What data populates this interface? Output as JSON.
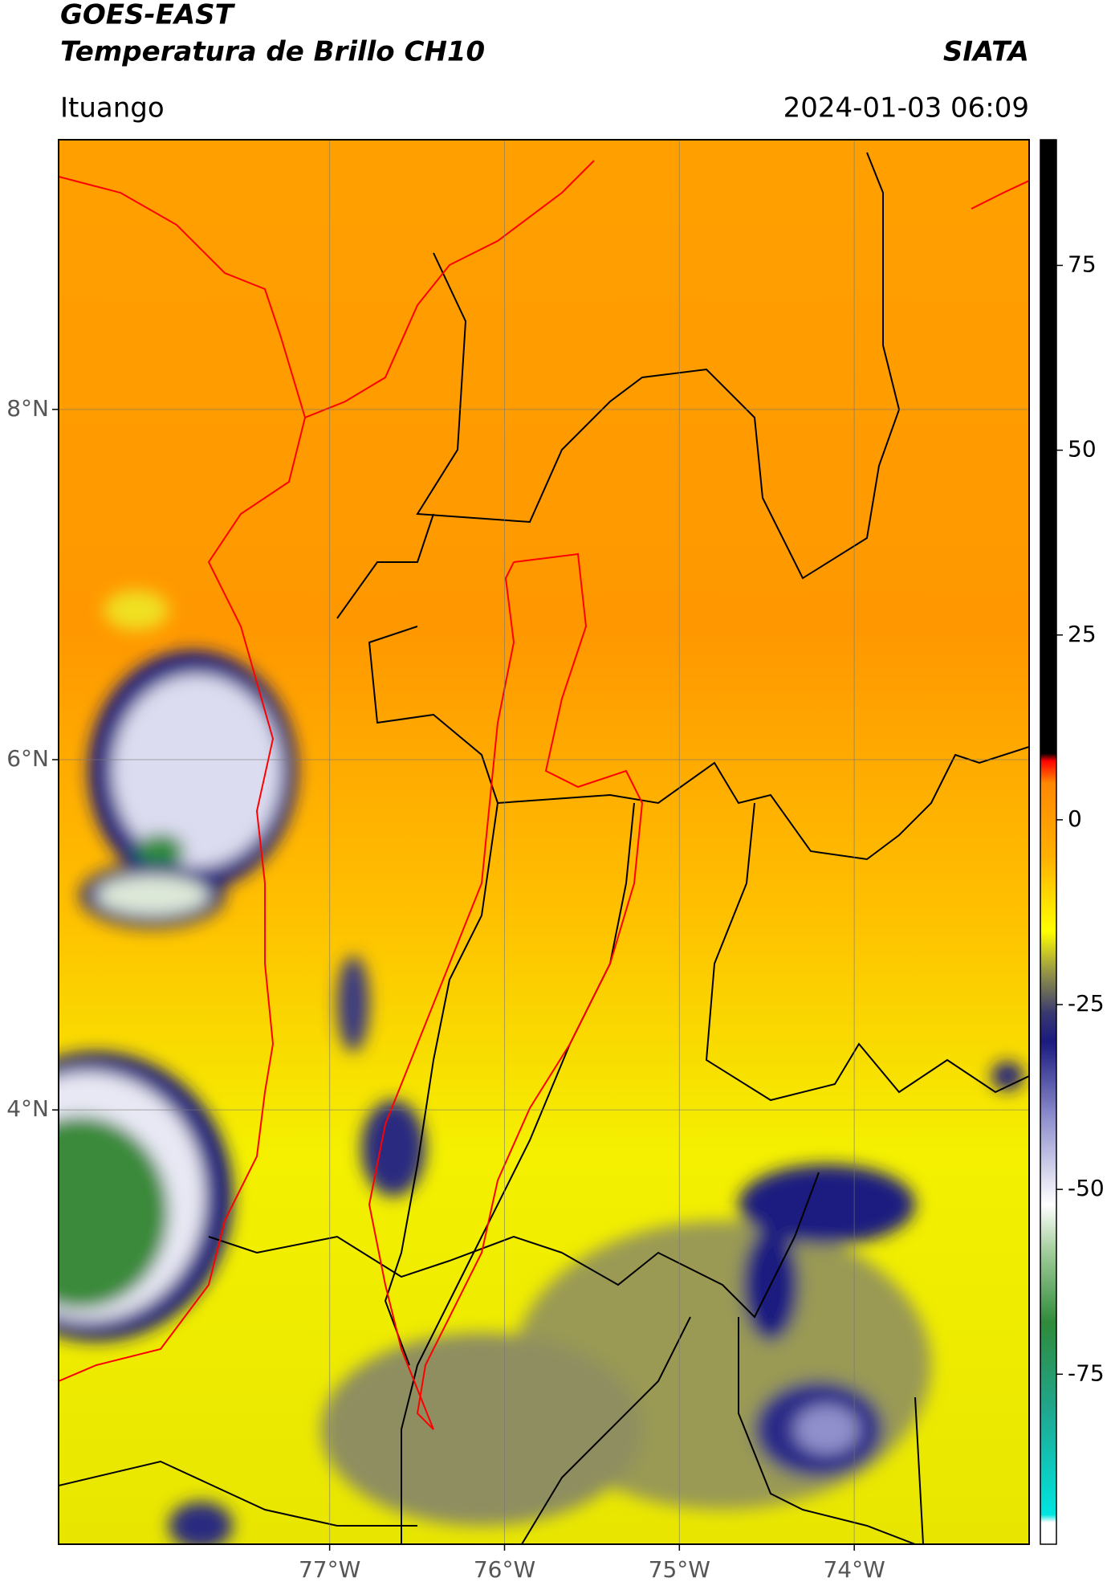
{
  "header": {
    "title": "GOES-EAST",
    "subtitle": "Temperatura de Brillo CH10",
    "source": "SIATA",
    "location": "Ituango",
    "datetime": "2024-01-03 06:09"
  },
  "map": {
    "xlim": [
      -78.55,
      -73.0
    ],
    "ylim": [
      1.52,
      9.54
    ],
    "xticks": [
      {
        "value": -77,
        "label": "77°W"
      },
      {
        "value": -76,
        "label": "76°W"
      },
      {
        "value": -75,
        "label": "75°W"
      },
      {
        "value": -74,
        "label": "74°W"
      }
    ],
    "yticks": [
      {
        "value": 8,
        "label": "8°N"
      },
      {
        "value": 6,
        "label": "6°N"
      },
      {
        "value": 4,
        "label": "4°N"
      }
    ],
    "grid": true
  },
  "colorbar": {
    "lim": [
      -98,
      92
    ],
    "ticks": [
      75,
      50,
      25,
      0,
      -25,
      -50,
      -75
    ],
    "colormap": [
      {
        "value": -98,
        "color": "#ffffff"
      },
      {
        "value": -95,
        "color": "#ffffff"
      },
      {
        "value": -94,
        "color": "#00e5e0"
      },
      {
        "value": -80,
        "color": "#1fa890"
      },
      {
        "value": -68,
        "color": "#2e8b3a"
      },
      {
        "value": -58,
        "color": "#a8d0a0"
      },
      {
        "value": -52,
        "color": "#ffffff"
      },
      {
        "value": -40,
        "color": "#8c8ccc"
      },
      {
        "value": -30,
        "color": "#1a1a80"
      },
      {
        "value": -26,
        "color": "#3a3a70"
      },
      {
        "value": -20,
        "color": "#a0a040"
      },
      {
        "value": -15,
        "color": "#ffff00"
      },
      {
        "value": -5,
        "color": "#ffb000"
      },
      {
        "value": 5,
        "color": "#ff8800"
      },
      {
        "value": 8,
        "color": "#ff0000"
      },
      {
        "value": 9,
        "color": "#000000"
      },
      {
        "value": 92,
        "color": "#000000"
      }
    ]
  }
}
